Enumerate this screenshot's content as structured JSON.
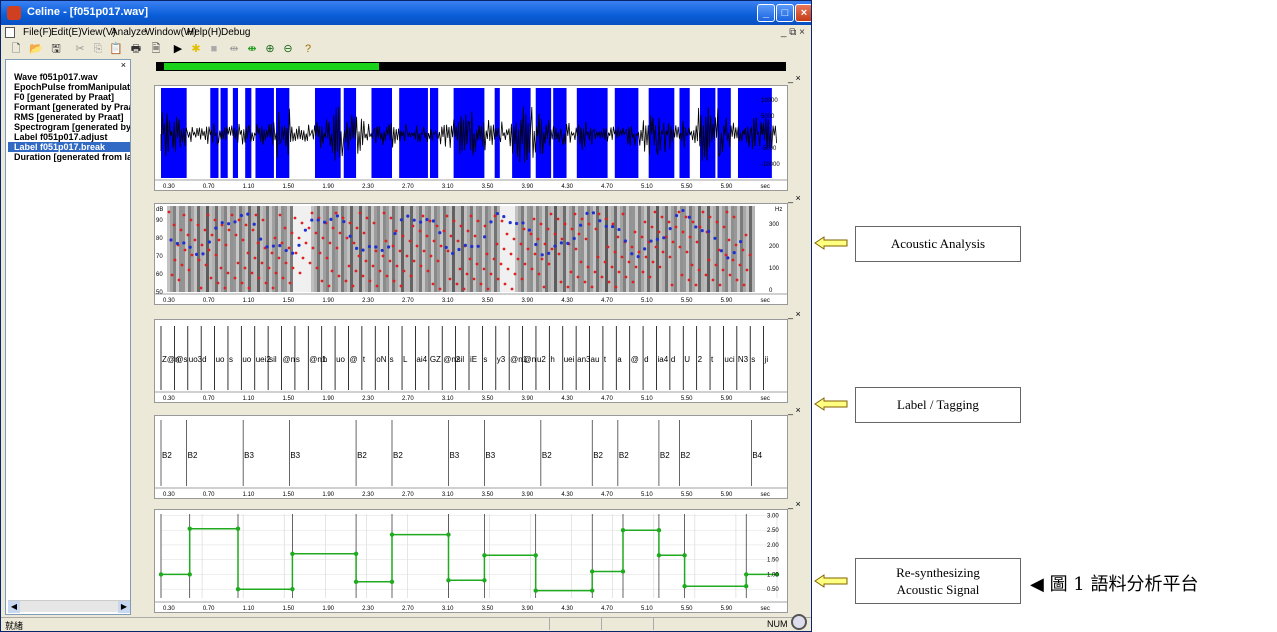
{
  "window": {
    "title": "Celine - [f051p017.wav]",
    "min_label": "_",
    "max_label": "□",
    "close_label": "×"
  },
  "menus": [
    "File(F)",
    "Edit(E)",
    "View(V)",
    "Analyze",
    "Window(W)",
    "Help(H)",
    "Debug"
  ],
  "mdi_controls": "_ ⧉ ×",
  "toolbar": {
    "icons": [
      "new-file-icon",
      "open-folder-icon",
      "save-icon",
      "cut-icon",
      "copy-icon",
      "paste-icon",
      "print-icon",
      "print-preview-icon",
      "play-icon",
      "record-icon",
      "stop-icon",
      "split-icon",
      "merge-icon",
      "zoom-in-icon",
      "zoom-out-icon",
      "help-icon"
    ]
  },
  "sidebar": {
    "pin_label": "×",
    "items": [
      {
        "label": "Wave f051p017.wav",
        "selected": false
      },
      {
        "label": "EpochPulse fromManipulati",
        "selected": false
      },
      {
        "label": "F0 [generated by Praat]",
        "selected": false
      },
      {
        "label": "Formant [generated by Praa",
        "selected": false
      },
      {
        "label": "RMS [generated by Praat]",
        "selected": false
      },
      {
        "label": "Spectrogram [generated by",
        "selected": false
      },
      {
        "label": "Label f051p017.adjust",
        "selected": false
      },
      {
        "label": "Label f051p017.break",
        "selected": true
      },
      {
        "label": "Duration [generated from la",
        "selected": false
      }
    ]
  },
  "progress": {
    "fraction": 0.35,
    "color": "#19d219"
  },
  "panel_controls": "_ ×",
  "time_ticks": [
    "0.30",
    "0.70",
    "1.10",
    "1.50",
    "1.90",
    "2.30",
    "2.70",
    "3.10",
    "3.50",
    "3.90",
    "4.30",
    "4.70",
    "5.10",
    "5.50",
    "5.90",
    "sec"
  ],
  "waveform": {
    "y_ticks": [
      "10000",
      "5000",
      "0",
      "-5000",
      "-10000"
    ],
    "highlight_color": "#0000ff"
  },
  "spectrogram": {
    "left_unit": "dB",
    "left_ticks": [
      "90",
      "80",
      "70",
      "60",
      "50"
    ],
    "right_unit": "Hz",
    "right_ticks": [
      "300",
      "200",
      "100",
      "0"
    ],
    "point_color": "#e02020",
    "f0_color": "#2030d0"
  },
  "phone_labels": [
    "Z@n",
    "@s",
    "uo3",
    "d",
    "uo",
    "s",
    "uo",
    "uei2",
    "sil",
    "@n",
    "s",
    "@n1",
    "h",
    "uo",
    "@",
    "t",
    "oN",
    "s",
    "L",
    "ai4",
    "GZ",
    "@n2",
    "sil",
    "iE",
    "s",
    "y3",
    "@n1",
    "@n",
    "u2",
    "h",
    "uei",
    "an3",
    "au",
    "t",
    "a",
    "@",
    "d",
    "ia4",
    "d",
    "U",
    "2",
    "t",
    "uci",
    "N3",
    "s",
    "ji"
  ],
  "break_labels": [
    {
      "t": 0.3,
      "label": "B2"
    },
    {
      "t": 0.55,
      "label": "B2"
    },
    {
      "t": 1.1,
      "label": "B3"
    },
    {
      "t": 1.55,
      "label": "B3"
    },
    {
      "t": 2.2,
      "label": "B2"
    },
    {
      "t": 2.55,
      "label": "B2"
    },
    {
      "t": 3.1,
      "label": "B3"
    },
    {
      "t": 3.45,
      "label": "B3"
    },
    {
      "t": 4.0,
      "label": "B2"
    },
    {
      "t": 4.5,
      "label": "B2"
    },
    {
      "t": 4.75,
      "label": "B2"
    },
    {
      "t": 5.15,
      "label": "B2"
    },
    {
      "t": 5.35,
      "label": "B2"
    },
    {
      "t": 6.05,
      "label": "B4"
    }
  ],
  "chart_data": {
    "type": "line",
    "title": "",
    "xlabel": "sec",
    "ylabel": "",
    "xlim": [
      0.3,
      6.3
    ],
    "ylim": [
      0.2,
      3.05
    ],
    "y_ticks": [
      "3.00",
      "2.50",
      "2.00",
      "1.50",
      "1.00",
      "0.50"
    ],
    "color": "#1faa1f",
    "steps": [
      {
        "x0": 0.3,
        "x1": 0.58,
        "y": 1.0
      },
      {
        "x0": 0.58,
        "x1": 1.05,
        "y": 2.55
      },
      {
        "x0": 1.05,
        "x1": 1.58,
        "y": 0.5
      },
      {
        "x0": 1.58,
        "x1": 2.2,
        "y": 1.7
      },
      {
        "x0": 2.2,
        "x1": 2.55,
        "y": 0.75
      },
      {
        "x0": 2.55,
        "x1": 3.1,
        "y": 2.35
      },
      {
        "x0": 3.1,
        "x1": 3.45,
        "y": 0.8
      },
      {
        "x0": 3.45,
        "x1": 3.95,
        "y": 1.65
      },
      {
        "x0": 3.95,
        "x1": 4.5,
        "y": 0.45
      },
      {
        "x0": 4.5,
        "x1": 4.8,
        "y": 1.1
      },
      {
        "x0": 4.8,
        "x1": 5.15,
        "y": 2.5
      },
      {
        "x0": 5.15,
        "x1": 5.4,
        "y": 1.65
      },
      {
        "x0": 5.4,
        "x1": 6.0,
        "y": 0.6
      },
      {
        "x0": 6.0,
        "x1": 6.3,
        "y": 1.0
      }
    ]
  },
  "statusbar": {
    "left": "就緒",
    "right": "NUM"
  },
  "callouts": [
    {
      "text": "Acoustic Analysis"
    },
    {
      "text": "Label /  Tagging"
    },
    {
      "text": "Re-synthesizing\nAcoustic Signal"
    }
  ],
  "caption": "◀ 圖 1   語料分析平台"
}
